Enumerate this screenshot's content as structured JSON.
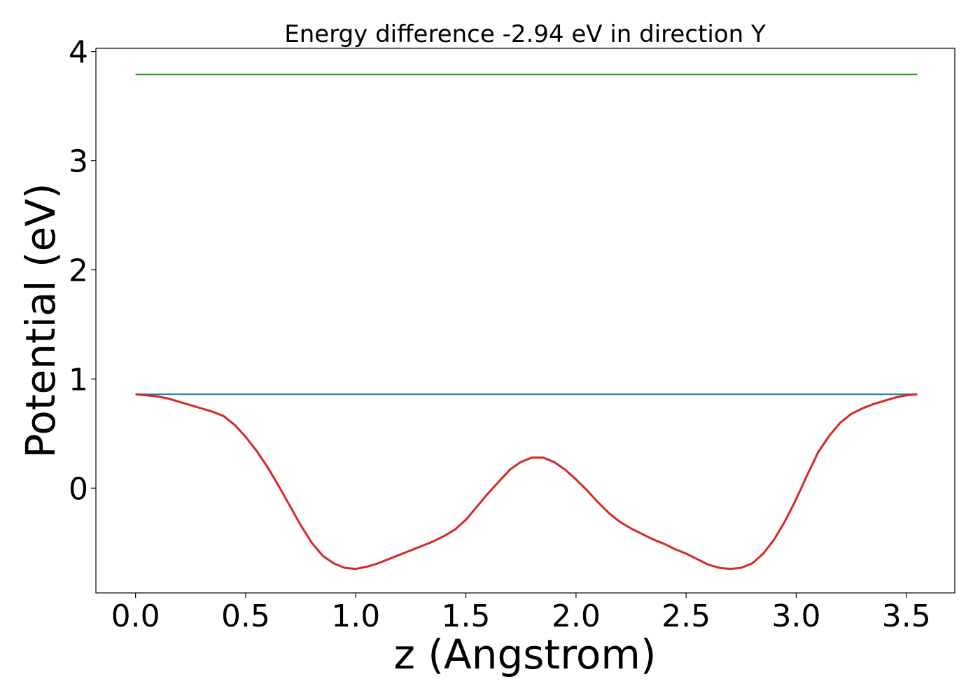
{
  "chart_data": {
    "type": "line",
    "title": "Energy difference -2.94 eV in direction Y",
    "xlabel": "z (Angstrom)",
    "ylabel": "Potential (eV)",
    "xlim": [
      -0.18,
      3.72
    ],
    "ylim": [
      -0.96,
      4.03
    ],
    "xticks": [
      0.0,
      0.5,
      1.0,
      1.5,
      2.0,
      2.5,
      3.0,
      3.5
    ],
    "xtick_labels": [
      "0.0",
      "0.5",
      "1.0",
      "1.5",
      "2.0",
      "2.5",
      "3.0",
      "3.5"
    ],
    "yticks": [
      0,
      1,
      2,
      3,
      4
    ],
    "ytick_labels": [
      "0",
      "1",
      "2",
      "3",
      "4"
    ],
    "grid": false,
    "series": [
      {
        "color": "#2ca02c",
        "x": [
          0.0,
          3.55
        ],
        "y": [
          3.79,
          3.79
        ]
      },
      {
        "color": "#1f77b4",
        "x": [
          0.0,
          3.55
        ],
        "y": [
          0.86,
          0.86
        ]
      },
      {
        "color": "#d62728",
        "x": [
          0.0,
          0.05,
          0.1,
          0.15,
          0.2,
          0.25,
          0.3,
          0.35,
          0.4,
          0.45,
          0.5,
          0.55,
          0.6,
          0.65,
          0.7,
          0.75,
          0.8,
          0.85,
          0.9,
          0.95,
          1.0,
          1.05,
          1.1,
          1.15,
          1.2,
          1.25,
          1.3,
          1.35,
          1.4,
          1.45,
          1.5,
          1.55,
          1.6,
          1.65,
          1.7,
          1.75,
          1.8,
          1.85,
          1.9,
          1.95,
          2.0,
          2.05,
          2.1,
          2.15,
          2.2,
          2.25,
          2.3,
          2.35,
          2.4,
          2.45,
          2.5,
          2.55,
          2.6,
          2.65,
          2.7,
          2.75,
          2.8,
          2.85,
          2.9,
          2.95,
          3.0,
          3.05,
          3.1,
          3.15,
          3.2,
          3.25,
          3.3,
          3.35,
          3.4,
          3.45,
          3.5,
          3.55
        ],
        "y": [
          0.86,
          0.85,
          0.84,
          0.82,
          0.79,
          0.76,
          0.73,
          0.7,
          0.66,
          0.58,
          0.47,
          0.34,
          0.19,
          0.02,
          -0.16,
          -0.34,
          -0.5,
          -0.62,
          -0.69,
          -0.73,
          -0.74,
          -0.72,
          -0.69,
          -0.65,
          -0.61,
          -0.57,
          -0.53,
          -0.49,
          -0.44,
          -0.38,
          -0.29,
          -0.17,
          -0.05,
          0.06,
          0.17,
          0.24,
          0.28,
          0.28,
          0.24,
          0.17,
          0.08,
          -0.02,
          -0.13,
          -0.23,
          -0.31,
          -0.37,
          -0.42,
          -0.47,
          -0.51,
          -0.56,
          -0.6,
          -0.65,
          -0.7,
          -0.73,
          -0.74,
          -0.73,
          -0.69,
          -0.6,
          -0.47,
          -0.3,
          -0.1,
          0.12,
          0.33,
          0.48,
          0.6,
          0.68,
          0.73,
          0.77,
          0.8,
          0.83,
          0.85,
          0.86
        ]
      }
    ]
  }
}
